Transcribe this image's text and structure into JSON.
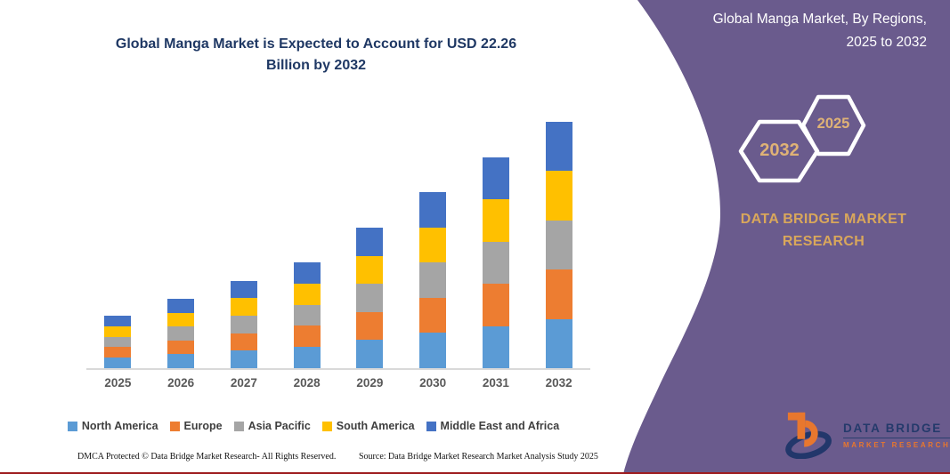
{
  "left_panel": {
    "title_line1": "Global Manga Market is Expected to Account for USD 22.26",
    "title_line2": "Billion by 2032",
    "footer": {
      "dmca": "DMCA Protected © Data Bridge Market Research-  All Rights Reserved.",
      "source": "Source: Data Bridge Market Research  Market Analysis Study 2025"
    }
  },
  "chart_data": {
    "type": "bar",
    "stacked": true,
    "title": "Global Manga Market is Expected to Account for USD 22.26 Billion by 2032",
    "categories": [
      "2025",
      "2026",
      "2027",
      "2028",
      "2029",
      "2030",
      "2031",
      "2032"
    ],
    "series": [
      {
        "name": "North America",
        "color": "#5B9BD5",
        "values": [
          0.95,
          1.25,
          1.58,
          1.91,
          2.54,
          3.18,
          3.81,
          4.45
        ]
      },
      {
        "name": "Europe",
        "color": "#ED7D31",
        "values": [
          0.95,
          1.25,
          1.58,
          1.91,
          2.54,
          3.18,
          3.81,
          4.45
        ]
      },
      {
        "name": "Asia Pacific",
        "color": "#A5A5A5",
        "values": [
          0.95,
          1.25,
          1.58,
          1.91,
          2.54,
          3.18,
          3.81,
          4.45
        ]
      },
      {
        "name": "South America",
        "color": "#FFC000",
        "values": [
          0.95,
          1.25,
          1.58,
          1.91,
          2.54,
          3.18,
          3.81,
          4.45
        ]
      },
      {
        "name": "Middle East and Africa",
        "color": "#4472C4",
        "values": [
          0.95,
          1.26,
          1.58,
          1.92,
          2.54,
          3.19,
          3.81,
          4.46
        ]
      }
    ],
    "totals": [
      4.75,
      6.26,
      7.9,
      9.56,
      12.7,
      15.91,
      19.05,
      22.26
    ],
    "unit": "USD Billion",
    "ylim": [
      0,
      22.26
    ],
    "grid": false,
    "legend_position": "bottom",
    "xlabel": "",
    "ylabel": ""
  },
  "right_panel": {
    "title_line1": "Global Manga Market, By Regions,",
    "title_line2": "2025 to 2032",
    "hexagon_back_label": "2032",
    "hexagon_front_label": "2025",
    "brand_line1": "DATA BRIDGE MARKET",
    "brand_line2": "RESEARCH",
    "logo_text_top": "DATA BRIDGE",
    "logo_text_bottom": "MARKET RESEARCH",
    "colors": {
      "panel_purple": "#6A5B8D",
      "accent_gold": "#D9A75B",
      "hex_label_gold": "#DFB276"
    }
  }
}
